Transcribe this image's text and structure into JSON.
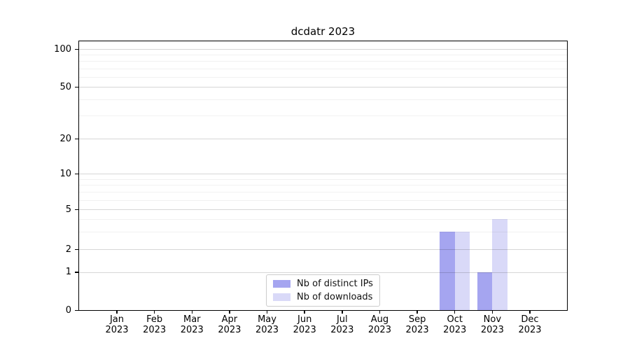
{
  "chart_data": {
    "type": "bar",
    "title": "dcdatr 2023",
    "categories": [
      "Jan 2023",
      "Feb 2023",
      "Mar 2023",
      "Apr 2023",
      "May 2023",
      "Jun 2023",
      "Jul 2023",
      "Aug 2023",
      "Sep 2023",
      "Oct 2023",
      "Nov 2023",
      "Dec 2023"
    ],
    "series": [
      {
        "name": "Nb of distinct IPs",
        "color": "#a5a5f0",
        "values": [
          0,
          0,
          0,
          0,
          0,
          0,
          0,
          0,
          0,
          3,
          1,
          0
        ]
      },
      {
        "name": "Nb of downloads",
        "color": "#d9d9f8",
        "values": [
          0,
          0,
          0,
          0,
          0,
          0,
          0,
          0,
          0,
          3,
          4,
          0
        ]
      }
    ],
    "yscale": "symlog",
    "ylim": [
      0,
      115
    ],
    "y_major_ticks": [
      0,
      1,
      2,
      5,
      10,
      20,
      50,
      100
    ],
    "y_minor_gridlines": [
      3,
      4,
      6,
      7,
      8,
      9,
      30,
      40,
      60,
      70,
      80,
      90
    ],
    "xlabel": "",
    "ylabel": "",
    "grid": "horizontal, majors and minors, drawn above bars",
    "legend_position": "lower center inside axes",
    "axis_color": "#000000",
    "major_grid_color": "#d6d6d6",
    "minor_grid_color": "#ededed",
    "background_color": "#ffffff"
  }
}
